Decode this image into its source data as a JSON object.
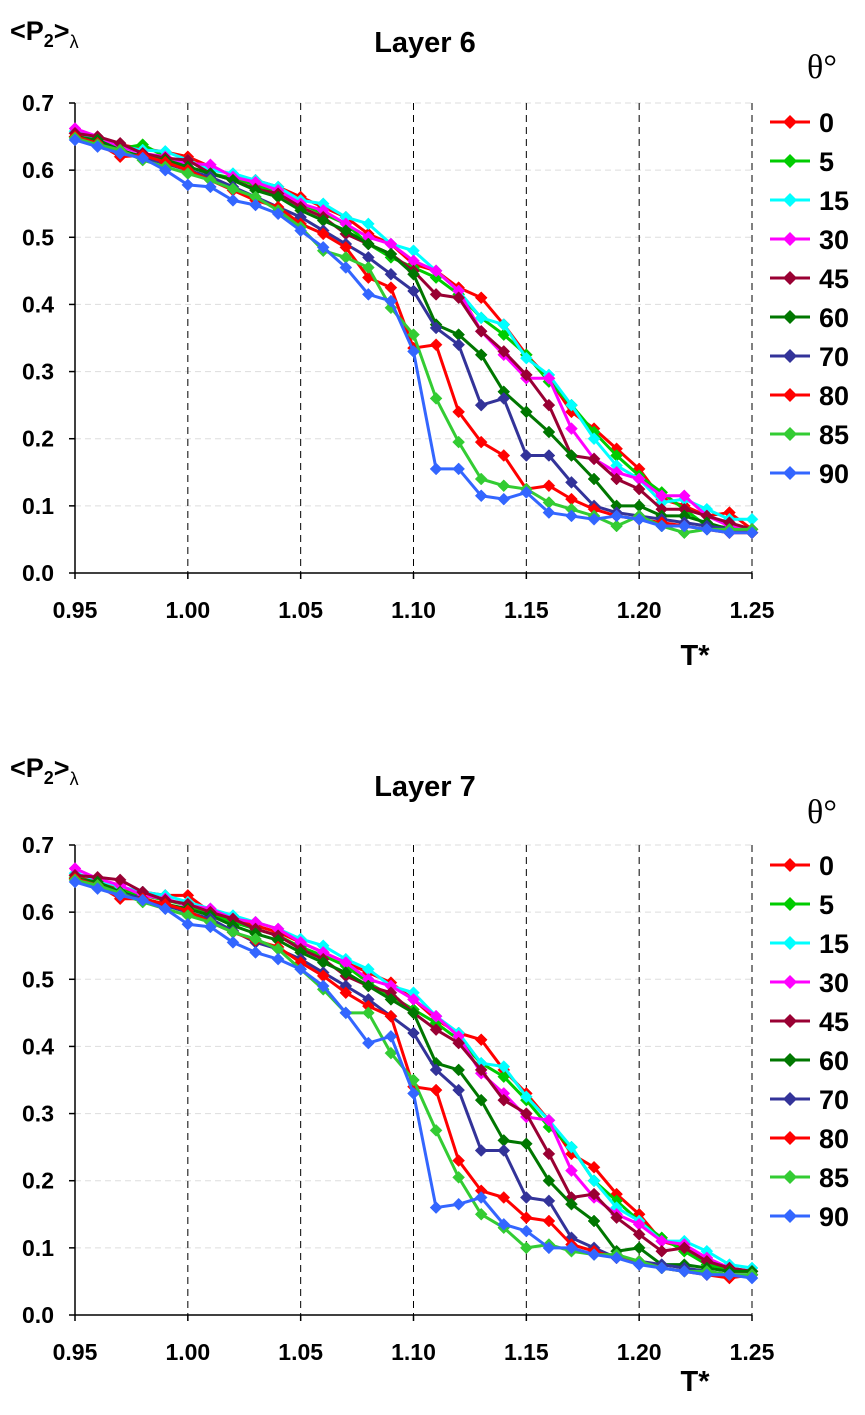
{
  "chart_data": [
    {
      "type": "line",
      "title": "Layer 6",
      "ylabel_main": "<P",
      "ylabel_sub": "2",
      "ylabel_after": ">",
      "ylabel_greek": "λ",
      "xlabel": "T*",
      "legend_title": "θ°",
      "legend_position": "right",
      "xlim": [
        0.95,
        1.25
      ],
      "ylim": [
        0.0,
        0.7
      ],
      "x_ticks": [
        "0.95",
        "1.00",
        "1.05",
        "1.10",
        "1.15",
        "1.20",
        "1.25"
      ],
      "y_ticks": [
        "0.0",
        "0.1",
        "0.2",
        "0.3",
        "0.4",
        "0.5",
        "0.6",
        "0.7"
      ],
      "grid": "vertical dashed",
      "x": [
        0.95,
        0.96,
        0.97,
        0.98,
        0.99,
        1.0,
        1.01,
        1.02,
        1.03,
        1.04,
        1.05,
        1.06,
        1.07,
        1.08,
        1.09,
        1.1,
        1.11,
        1.12,
        1.13,
        1.14,
        1.15,
        1.16,
        1.17,
        1.18,
        1.19,
        1.2,
        1.21,
        1.22,
        1.23,
        1.24,
        1.25
      ],
      "series": [
        {
          "name": "0",
          "color": "#FF0000",
          "values": [
            0.655,
            0.645,
            0.638,
            0.632,
            0.627,
            0.62,
            0.605,
            0.592,
            0.585,
            0.575,
            0.56,
            0.545,
            0.53,
            0.505,
            0.49,
            0.46,
            0.45,
            0.425,
            0.41,
            0.37,
            0.325,
            0.29,
            0.24,
            0.215,
            0.185,
            0.155,
            0.11,
            0.1,
            0.085,
            0.09,
            0.065
          ]
        },
        {
          "name": "5",
          "color": "#00CC00",
          "values": [
            0.65,
            0.64,
            0.632,
            0.638,
            0.62,
            0.605,
            0.595,
            0.588,
            0.578,
            0.565,
            0.55,
            0.535,
            0.52,
            0.49,
            0.47,
            0.455,
            0.44,
            0.415,
            0.38,
            0.355,
            0.325,
            0.285,
            0.25,
            0.21,
            0.175,
            0.145,
            0.12,
            0.095,
            0.07,
            0.068,
            0.065
          ]
        },
        {
          "name": "15",
          "color": "#00FFFF",
          "values": [
            0.658,
            0.645,
            0.635,
            0.63,
            0.628,
            0.615,
            0.6,
            0.595,
            0.585,
            0.575,
            0.555,
            0.55,
            0.53,
            0.52,
            0.49,
            0.48,
            0.45,
            0.42,
            0.38,
            0.37,
            0.32,
            0.295,
            0.25,
            0.2,
            0.16,
            0.14,
            0.105,
            0.11,
            0.095,
            0.08,
            0.08
          ]
        },
        {
          "name": "30",
          "color": "#FF00FF",
          "values": [
            0.662,
            0.65,
            0.635,
            0.625,
            0.62,
            0.61,
            0.608,
            0.59,
            0.582,
            0.57,
            0.55,
            0.54,
            0.52,
            0.5,
            0.49,
            0.465,
            0.45,
            0.42,
            0.36,
            0.325,
            0.29,
            0.29,
            0.215,
            0.17,
            0.15,
            0.14,
            0.115,
            0.115,
            0.085,
            0.07,
            0.065
          ]
        },
        {
          "name": "45",
          "color": "#990033",
          "values": [
            0.655,
            0.65,
            0.64,
            0.625,
            0.618,
            0.615,
            0.595,
            0.585,
            0.572,
            0.565,
            0.545,
            0.53,
            0.505,
            0.49,
            0.475,
            0.45,
            0.415,
            0.41,
            0.36,
            0.33,
            0.295,
            0.25,
            0.175,
            0.17,
            0.14,
            0.125,
            0.095,
            0.095,
            0.085,
            0.075,
            0.065
          ]
        },
        {
          "name": "60",
          "color": "#007700",
          "values": [
            0.65,
            0.645,
            0.63,
            0.62,
            0.615,
            0.605,
            0.595,
            0.585,
            0.57,
            0.56,
            0.54,
            0.525,
            0.51,
            0.49,
            0.475,
            0.445,
            0.37,
            0.355,
            0.325,
            0.27,
            0.24,
            0.21,
            0.175,
            0.14,
            0.1,
            0.1,
            0.085,
            0.085,
            0.075,
            0.065,
            0.06
          ]
        },
        {
          "name": "70",
          "color": "#333399",
          "values": [
            0.648,
            0.64,
            0.628,
            0.618,
            0.61,
            0.6,
            0.59,
            0.575,
            0.56,
            0.545,
            0.53,
            0.51,
            0.49,
            0.47,
            0.445,
            0.42,
            0.365,
            0.34,
            0.25,
            0.26,
            0.175,
            0.175,
            0.135,
            0.1,
            0.09,
            0.085,
            0.08,
            0.075,
            0.07,
            0.065,
            0.06
          ]
        },
        {
          "name": "80",
          "color": "#FF0000",
          "values": [
            0.65,
            0.64,
            0.62,
            0.622,
            0.612,
            0.6,
            0.585,
            0.57,
            0.555,
            0.545,
            0.52,
            0.505,
            0.485,
            0.44,
            0.425,
            0.335,
            0.34,
            0.24,
            0.195,
            0.175,
            0.125,
            0.13,
            0.11,
            0.095,
            0.085,
            0.08,
            0.075,
            0.07,
            0.065,
            0.06,
            0.06
          ]
        },
        {
          "name": "85",
          "color": "#33CC33",
          "values": [
            0.648,
            0.638,
            0.63,
            0.615,
            0.605,
            0.595,
            0.585,
            0.572,
            0.56,
            0.54,
            0.515,
            0.48,
            0.47,
            0.455,
            0.395,
            0.355,
            0.26,
            0.195,
            0.14,
            0.13,
            0.125,
            0.105,
            0.095,
            0.085,
            0.07,
            0.085,
            0.07,
            0.06,
            0.065,
            0.065,
            0.065
          ]
        },
        {
          "name": "90",
          "color": "#3366FF",
          "values": [
            0.645,
            0.635,
            0.625,
            0.618,
            0.6,
            0.578,
            0.575,
            0.555,
            0.548,
            0.535,
            0.51,
            0.485,
            0.455,
            0.415,
            0.405,
            0.33,
            0.155,
            0.155,
            0.115,
            0.11,
            0.12,
            0.09,
            0.085,
            0.08,
            0.085,
            0.08,
            0.07,
            0.07,
            0.065,
            0.06,
            0.06
          ]
        }
      ]
    },
    {
      "type": "line",
      "title": "Layer 7",
      "ylabel_main": "<P",
      "ylabel_sub": "2",
      "ylabel_after": ">",
      "ylabel_greek": "λ",
      "xlabel": "T*",
      "legend_title": "θ°",
      "legend_position": "right",
      "xlim": [
        0.95,
        1.25
      ],
      "ylim": [
        0.0,
        0.7
      ],
      "x_ticks": [
        "0.95",
        "1.00",
        "1.05",
        "1.10",
        "1.15",
        "1.20",
        "1.25"
      ],
      "y_ticks": [
        "0.0",
        "0.1",
        "0.2",
        "0.3",
        "0.4",
        "0.5",
        "0.6",
        "0.7"
      ],
      "grid": "vertical dashed",
      "x": [
        0.95,
        0.96,
        0.97,
        0.98,
        0.99,
        1.0,
        1.01,
        1.02,
        1.03,
        1.04,
        1.05,
        1.06,
        1.07,
        1.08,
        1.09,
        1.1,
        1.11,
        1.12,
        1.13,
        1.14,
        1.15,
        1.16,
        1.17,
        1.18,
        1.19,
        1.2,
        1.21,
        1.22,
        1.23,
        1.24,
        1.25
      ],
      "series": [
        {
          "name": "0",
          "color": "#FF0000",
          "values": [
            0.655,
            0.645,
            0.635,
            0.63,
            0.625,
            0.625,
            0.6,
            0.59,
            0.58,
            0.57,
            0.555,
            0.54,
            0.525,
            0.51,
            0.495,
            0.47,
            0.44,
            0.42,
            0.41,
            0.365,
            0.33,
            0.29,
            0.24,
            0.22,
            0.18,
            0.15,
            0.11,
            0.1,
            0.085,
            0.065,
            0.065
          ]
        },
        {
          "name": "5",
          "color": "#00CC00",
          "values": [
            0.652,
            0.642,
            0.632,
            0.625,
            0.618,
            0.61,
            0.598,
            0.585,
            0.575,
            0.565,
            0.548,
            0.535,
            0.52,
            0.495,
            0.475,
            0.455,
            0.435,
            0.41,
            0.375,
            0.355,
            0.32,
            0.28,
            0.25,
            0.2,
            0.17,
            0.14,
            0.115,
            0.095,
            0.075,
            0.068,
            0.065
          ]
        },
        {
          "name": "15",
          "color": "#00FFFF",
          "values": [
            0.658,
            0.648,
            0.638,
            0.63,
            0.625,
            0.615,
            0.605,
            0.595,
            0.585,
            0.575,
            0.56,
            0.55,
            0.53,
            0.515,
            0.49,
            0.48,
            0.445,
            0.42,
            0.375,
            0.37,
            0.325,
            0.29,
            0.25,
            0.2,
            0.16,
            0.14,
            0.11,
            0.11,
            0.095,
            0.075,
            0.07
          ]
        },
        {
          "name": "30",
          "color": "#FF00FF",
          "values": [
            0.665,
            0.65,
            0.64,
            0.625,
            0.62,
            0.61,
            0.605,
            0.59,
            0.585,
            0.575,
            0.555,
            0.54,
            0.525,
            0.5,
            0.49,
            0.47,
            0.445,
            0.415,
            0.36,
            0.33,
            0.295,
            0.29,
            0.215,
            0.175,
            0.15,
            0.135,
            0.11,
            0.105,
            0.085,
            0.07,
            0.065
          ]
        },
        {
          "name": "45",
          "color": "#990033",
          "values": [
            0.655,
            0.652,
            0.648,
            0.63,
            0.618,
            0.612,
            0.6,
            0.59,
            0.575,
            0.565,
            0.545,
            0.53,
            0.505,
            0.49,
            0.48,
            0.45,
            0.425,
            0.405,
            0.365,
            0.32,
            0.3,
            0.24,
            0.175,
            0.18,
            0.145,
            0.12,
            0.095,
            0.1,
            0.08,
            0.07,
            0.065
          ]
        },
        {
          "name": "60",
          "color": "#007700",
          "values": [
            0.65,
            0.645,
            0.63,
            0.62,
            0.612,
            0.605,
            0.595,
            0.58,
            0.568,
            0.558,
            0.54,
            0.525,
            0.51,
            0.49,
            0.47,
            0.45,
            0.375,
            0.365,
            0.32,
            0.26,
            0.255,
            0.2,
            0.165,
            0.14,
            0.095,
            0.1,
            0.075,
            0.075,
            0.07,
            0.065,
            0.065
          ]
        },
        {
          "name": "70",
          "color": "#333399",
          "values": [
            0.648,
            0.64,
            0.628,
            0.62,
            0.61,
            0.6,
            0.59,
            0.572,
            0.555,
            0.545,
            0.53,
            0.51,
            0.49,
            0.47,
            0.445,
            0.42,
            0.365,
            0.335,
            0.245,
            0.245,
            0.175,
            0.17,
            0.115,
            0.1,
            0.085,
            0.08,
            0.075,
            0.07,
            0.065,
            0.06,
            0.06
          ]
        },
        {
          "name": "80",
          "color": "#FF0000",
          "values": [
            0.65,
            0.64,
            0.62,
            0.62,
            0.612,
            0.602,
            0.585,
            0.57,
            0.558,
            0.548,
            0.525,
            0.505,
            0.48,
            0.46,
            0.445,
            0.34,
            0.335,
            0.23,
            0.185,
            0.175,
            0.145,
            0.14,
            0.105,
            0.095,
            0.085,
            0.08,
            0.07,
            0.065,
            0.06,
            0.055,
            0.06
          ]
        },
        {
          "name": "85",
          "color": "#33CC33",
          "values": [
            0.648,
            0.64,
            0.628,
            0.615,
            0.605,
            0.595,
            0.585,
            0.57,
            0.56,
            0.545,
            0.515,
            0.485,
            0.45,
            0.45,
            0.39,
            0.35,
            0.275,
            0.205,
            0.15,
            0.13,
            0.1,
            0.105,
            0.095,
            0.09,
            0.09,
            0.08,
            0.07,
            0.065,
            0.065,
            0.06,
            0.06
          ]
        },
        {
          "name": "90",
          "color": "#3366FF",
          "values": [
            0.645,
            0.635,
            0.625,
            0.618,
            0.605,
            0.582,
            0.578,
            0.555,
            0.54,
            0.53,
            0.515,
            0.49,
            0.45,
            0.405,
            0.415,
            0.33,
            0.16,
            0.165,
            0.175,
            0.135,
            0.125,
            0.1,
            0.1,
            0.09,
            0.085,
            0.075,
            0.07,
            0.065,
            0.06,
            0.06,
            0.055
          ]
        }
      ]
    }
  ]
}
